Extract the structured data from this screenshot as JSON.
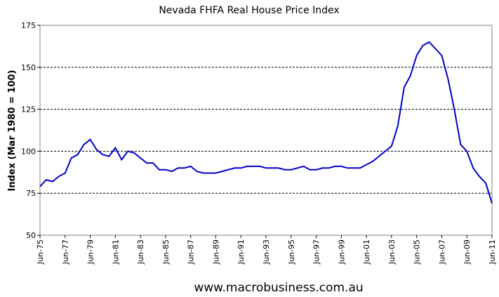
{
  "chart_data": {
    "type": "line",
    "title": "Nevada FHFA Real House Price Index",
    "ylabel": "Index (Mar 1980 = 100)",
    "footer": "www.macrobusiness.com.au",
    "categories": [
      "Jun-75",
      null,
      null,
      null,
      "Jun-77",
      null,
      null,
      null,
      "Jun-79",
      null,
      null,
      null,
      "Jun-81",
      null,
      null,
      null,
      "Jun-83",
      null,
      null,
      null,
      "Jun-85",
      null,
      null,
      null,
      "Jun-87",
      null,
      null,
      null,
      "Jun-89",
      null,
      null,
      null,
      "Jun-91",
      null,
      null,
      null,
      "Jun-93",
      null,
      null,
      null,
      "Jun-95",
      null,
      null,
      null,
      "Jun-97",
      null,
      null,
      null,
      "Jun-99",
      null,
      null,
      null,
      "Jun-01",
      null,
      null,
      null,
      "Jun-03",
      null,
      null,
      null,
      "Jun-05",
      null,
      null,
      null,
      "Jun-07",
      null,
      null,
      null,
      "Jun-09",
      null,
      null,
      null,
      "Jun-11"
    ],
    "values": [
      79,
      83,
      82,
      85,
      87,
      96,
      98,
      104,
      107,
      101,
      98,
      97,
      102,
      95,
      100,
      99,
      96,
      93,
      93,
      89,
      89,
      88,
      90,
      90,
      91,
      88,
      87,
      87,
      87,
      88,
      89,
      90,
      90,
      91,
      91,
      91,
      90,
      90,
      90,
      89,
      89,
      90,
      91,
      89,
      89,
      90,
      90,
      91,
      91,
      90,
      90,
      90,
      92,
      94,
      97,
      100,
      103,
      115,
      138,
      145,
      157,
      163,
      165,
      161,
      157,
      143,
      125,
      104,
      100,
      90,
      85,
      81,
      69
    ],
    "color": "#0000cc",
    "ylim": [
      50,
      175
    ],
    "yticks": [
      50,
      75,
      100,
      125,
      150,
      175
    ],
    "grid": true
  }
}
